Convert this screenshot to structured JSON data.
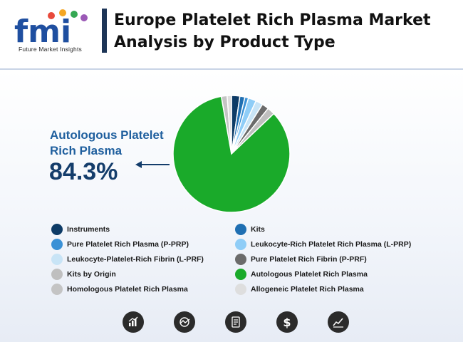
{
  "header": {
    "logo_text": "fmi",
    "logo_tagline": "Future Market Insights",
    "title": "Europe Platelet Rich Plasma Market Analysis by Product Type"
  },
  "callout": {
    "label": "Autologous Platelet Rich Plasma",
    "value": "84.3%"
  },
  "chart_data": {
    "type": "pie",
    "title": "Europe Platelet Rich Plasma Market Analysis by Product Type",
    "slices": [
      {
        "label": "Instruments",
        "value": 2.3,
        "color": "#0d3b66"
      },
      {
        "label": "Kits",
        "value": 1.4,
        "color": "#1f6fb2"
      },
      {
        "label": "Pure Platelet Rich Plasma (P-PRP)",
        "value": 1.0,
        "color": "#3a91d6"
      },
      {
        "label": "Leukocyte-Rich Platelet Rich Plasma (L-PRP)",
        "value": 2.2,
        "color": "#8fcdf7"
      },
      {
        "label": "Leukocyte-Platelet-Rich Fibrin (L-PRF)",
        "value": 2.0,
        "color": "#c8e4f6"
      },
      {
        "label": "Pure Platelet Rich Fibrin (P-PRF)",
        "value": 1.9,
        "color": "#6b6b6b"
      },
      {
        "label": "Kits by Origin",
        "value": 2.1,
        "color": "#bfbfbf"
      },
      {
        "label": "Autologous Platelet Rich Plasma",
        "value": 84.3,
        "color": "#1aaa2a"
      },
      {
        "label": "Homologous Platelet Rich Plasma",
        "value": 1.6,
        "color": "#c4c4c4"
      },
      {
        "label": "Allogeneic Platelet Rich Plasma",
        "value": 1.2,
        "color": "#dedede"
      }
    ],
    "legend_placement": "bottom",
    "legend_order": [
      "Instruments",
      "Kits",
      "Pure Platelet Rich Plasma (P-PRP)",
      "Leukocyte-Rich Platelet Rich Plasma (L-PRP)",
      "Leukocyte-Platelet-Rich Fibrin (L-PRF)",
      "Pure Platelet Rich Fibrin (P-PRF)",
      "Kits by Origin",
      "Autologous Platelet Rich Plasma",
      "Homologous Platelet Rich Plasma",
      "Allogeneic Platelet Rich Plasma"
    ]
  },
  "footer_icons": [
    "bar-chart-icon",
    "globe-trend-icon",
    "report-icon",
    "dollar-icon",
    "line-trend-icon"
  ],
  "colors": {
    "title_bar": "#1d3557",
    "callout_label": "#1f5f9e",
    "callout_value": "#143d6b"
  }
}
